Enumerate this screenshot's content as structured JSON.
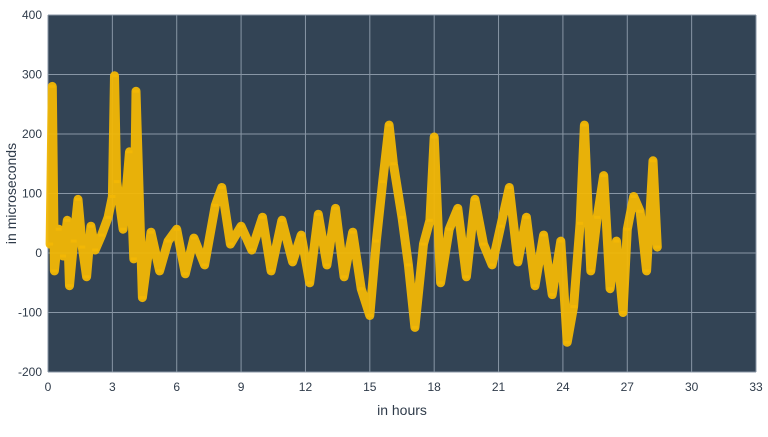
{
  "chart_data": {
    "type": "scatter",
    "xlabel": "in hours",
    "ylabel": "in microseconds",
    "xlim": [
      0,
      33
    ],
    "ylim": [
      -200,
      400
    ],
    "xticks": [
      "0",
      "3",
      "6",
      "9",
      "12",
      "15",
      "18",
      "21",
      "24",
      "27",
      "30",
      "33"
    ],
    "yticks": [
      "-200",
      "-100",
      "0",
      "100",
      "200",
      "300",
      "400"
    ],
    "grid": true,
    "colors": {
      "background": "#334455",
      "grid": "#8896a5",
      "points": "#f2b705"
    },
    "series": [
      {
        "values": [
          {
            "x": 0.1,
            "y": 15
          },
          {
            "x": 0.2,
            "y": 280
          },
          {
            "x": 0.3,
            "y": -30
          },
          {
            "x": 0.5,
            "y": 40
          },
          {
            "x": 0.7,
            "y": -5
          },
          {
            "x": 0.9,
            "y": 55
          },
          {
            "x": 1.0,
            "y": -55
          },
          {
            "x": 1.2,
            "y": 20
          },
          {
            "x": 1.4,
            "y": 90
          },
          {
            "x": 1.6,
            "y": 10
          },
          {
            "x": 1.8,
            "y": -40
          },
          {
            "x": 2.0,
            "y": 45
          },
          {
            "x": 2.2,
            "y": 5
          },
          {
            "x": 2.5,
            "y": 30
          },
          {
            "x": 2.8,
            "y": 60
          },
          {
            "x": 3.0,
            "y": 95
          },
          {
            "x": 3.1,
            "y": 298
          },
          {
            "x": 3.2,
            "y": 120
          },
          {
            "x": 3.5,
            "y": 40
          },
          {
            "x": 3.8,
            "y": 170
          },
          {
            "x": 4.0,
            "y": -10
          },
          {
            "x": 4.1,
            "y": 272
          },
          {
            "x": 4.4,
            "y": -75
          },
          {
            "x": 4.8,
            "y": 35
          },
          {
            "x": 5.2,
            "y": -30
          },
          {
            "x": 5.6,
            "y": 20
          },
          {
            "x": 6.0,
            "y": 40
          },
          {
            "x": 6.4,
            "y": -35
          },
          {
            "x": 6.8,
            "y": 25
          },
          {
            "x": 7.3,
            "y": -20
          },
          {
            "x": 7.8,
            "y": 80
          },
          {
            "x": 8.1,
            "y": 110
          },
          {
            "x": 8.5,
            "y": 15
          },
          {
            "x": 9.0,
            "y": 45
          },
          {
            "x": 9.5,
            "y": 5
          },
          {
            "x": 10.0,
            "y": 60
          },
          {
            "x": 10.4,
            "y": -30
          },
          {
            "x": 10.9,
            "y": 55
          },
          {
            "x": 11.4,
            "y": -15
          },
          {
            "x": 11.8,
            "y": 30
          },
          {
            "x": 12.2,
            "y": -50
          },
          {
            "x": 12.6,
            "y": 65
          },
          {
            "x": 13.0,
            "y": -20
          },
          {
            "x": 13.4,
            "y": 75
          },
          {
            "x": 13.8,
            "y": -40
          },
          {
            "x": 14.2,
            "y": 35
          },
          {
            "x": 14.6,
            "y": -60
          },
          {
            "x": 15.0,
            "y": -105
          },
          {
            "x": 15.3,
            "y": 20
          },
          {
            "x": 15.6,
            "y": 120
          },
          {
            "x": 15.9,
            "y": 215
          },
          {
            "x": 16.1,
            "y": 150
          },
          {
            "x": 16.5,
            "y": 60
          },
          {
            "x": 16.8,
            "y": -20
          },
          {
            "x": 17.1,
            "y": -125
          },
          {
            "x": 17.5,
            "y": 15
          },
          {
            "x": 17.8,
            "y": 55
          },
          {
            "x": 18.0,
            "y": 195
          },
          {
            "x": 18.3,
            "y": -50
          },
          {
            "x": 18.7,
            "y": 40
          },
          {
            "x": 19.1,
            "y": 75
          },
          {
            "x": 19.5,
            "y": -40
          },
          {
            "x": 19.9,
            "y": 90
          },
          {
            "x": 20.3,
            "y": 15
          },
          {
            "x": 20.7,
            "y": -20
          },
          {
            "x": 21.1,
            "y": 45
          },
          {
            "x": 21.5,
            "y": 110
          },
          {
            "x": 21.9,
            "y": -15
          },
          {
            "x": 22.3,
            "y": 60
          },
          {
            "x": 22.7,
            "y": -55
          },
          {
            "x": 23.1,
            "y": 30
          },
          {
            "x": 23.5,
            "y": -70
          },
          {
            "x": 23.9,
            "y": 20
          },
          {
            "x": 24.2,
            "y": -150
          },
          {
            "x": 24.5,
            "y": -90
          },
          {
            "x": 24.8,
            "y": 50
          },
          {
            "x": 25.0,
            "y": 215
          },
          {
            "x": 25.3,
            "y": -30
          },
          {
            "x": 25.6,
            "y": 60
          },
          {
            "x": 25.9,
            "y": 130
          },
          {
            "x": 26.2,
            "y": -60
          },
          {
            "x": 26.5,
            "y": 20
          },
          {
            "x": 26.8,
            "y": -100
          },
          {
            "x": 27.0,
            "y": 40
          },
          {
            "x": 27.3,
            "y": 95
          },
          {
            "x": 27.6,
            "y": 70
          },
          {
            "x": 27.9,
            "y": -30
          },
          {
            "x": 28.2,
            "y": 155
          },
          {
            "x": 28.4,
            "y": 10
          }
        ]
      }
    ]
  }
}
